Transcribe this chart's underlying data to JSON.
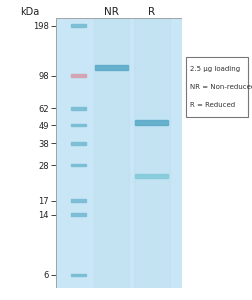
{
  "title": "kDa",
  "col_labels": [
    "NR",
    "R"
  ],
  "marker_positions": [
    198,
    98,
    62,
    49,
    38,
    28,
    17,
    14,
    6
  ],
  "gel_bg": "#c8e6f5",
  "outer_bg": "#ffffff",
  "ladder_color": "#78bcd4",
  "ladder_98_color": "#d4a0b0",
  "nr_band_mw": 110,
  "nr_band_color": "#5aaac8",
  "r_band1_mw": 51,
  "r_band1_color": "#5aaac8",
  "r_band2_mw": 24,
  "r_band2_color": "#7fc8d8",
  "legend_text": [
    "2.5 μg loading",
    "NR = Non-reduced",
    "R = Reduced"
  ],
  "ymin": 5,
  "ymax": 220
}
